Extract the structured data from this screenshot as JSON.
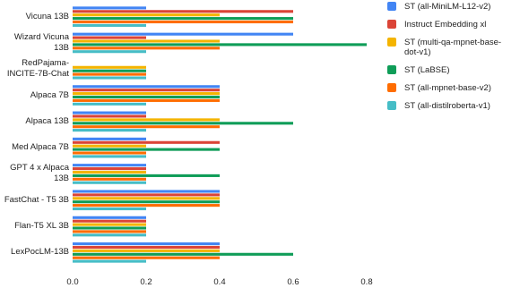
{
  "chart_data": {
    "type": "hbar",
    "categories": [
      "Vicuna 13B",
      "Wizard Vicuna 13B",
      "RedPajama-INCITE-7B-Chat",
      "Alpaca 7B",
      "Alpaca 13B",
      "Med Alpaca 7B",
      "GPT 4 x Alpaca 13B",
      "FastChat - T5 3B",
      "Flan-T5 XL 3B",
      "LexPocLM-13B"
    ],
    "series": [
      {
        "name": "ST (all-MiniLM-L12-v2)",
        "color": "#4285f4",
        "values": [
          0.2,
          0.6,
          0,
          0.4,
          0.2,
          0.2,
          0.2,
          0.4,
          0.2,
          0.4
        ]
      },
      {
        "name": "Instruct Embedding xl",
        "color": "#db4437",
        "values": [
          0.6,
          0.2,
          0,
          0.4,
          0.2,
          0.4,
          0.2,
          0.4,
          0.2,
          0.4
        ]
      },
      {
        "name": "ST (multi-qa-mpnet-base-dot-v1)",
        "color": "#f4b400",
        "values": [
          0.4,
          0.4,
          0.2,
          0.4,
          0.4,
          0.2,
          0.2,
          0.4,
          0.2,
          0.4
        ]
      },
      {
        "name": "ST (LaBSE)",
        "color": "#0f9d58",
        "values": [
          0.6,
          0.8,
          0.2,
          0.4,
          0.6,
          0.4,
          0.4,
          0.4,
          0.2,
          0.6
        ]
      },
      {
        "name": "ST (all-mpnet-base-v2)",
        "color": "#ff6d01",
        "values": [
          0.6,
          0.4,
          0.2,
          0.4,
          0.4,
          0.2,
          0.2,
          0.4,
          0.2,
          0.4
        ]
      },
      {
        "name": "ST (all-distilroberta-v1)",
        "color": "#46bdc6",
        "values": [
          0.2,
          0.2,
          0.2,
          0.2,
          0.2,
          0.2,
          0.2,
          0.2,
          0.2,
          0.2
        ]
      }
    ],
    "xlim": [
      0,
      0.8
    ],
    "xticks": [
      {
        "value": 0,
        "label": "0.0"
      },
      0.2,
      0.4,
      0.6,
      0.8
    ],
    "grid": false,
    "legend": "right"
  }
}
